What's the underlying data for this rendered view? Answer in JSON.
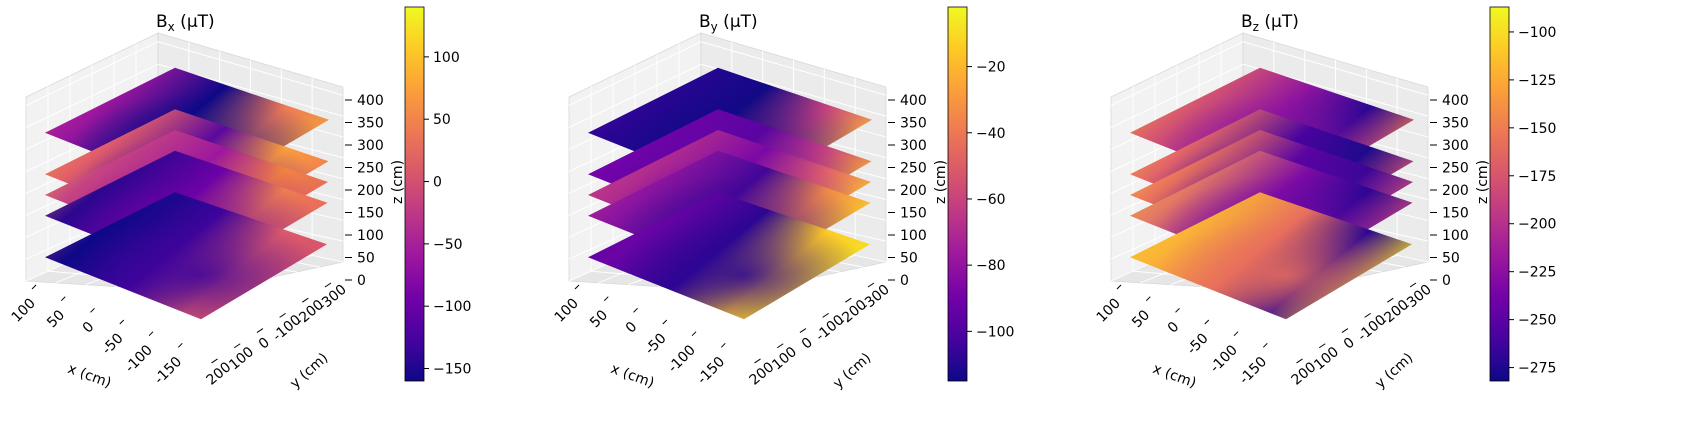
{
  "figure": {
    "panels": [
      {
        "title_main": "B",
        "title_sub": "x",
        "title_unit": " (μT)",
        "xlabel": "x (cm)",
        "ylabel": "y (cm)",
        "zlabel": "z (cm)",
        "x_ticks": [
          "100",
          "50",
          "0",
          "-50",
          "-100",
          "-150"
        ],
        "y_ticks": [
          "-300",
          "-200",
          "-100",
          "0",
          "100",
          "200"
        ],
        "z_ticks": [
          "0",
          "50",
          "100",
          "150",
          "200",
          "250",
          "300",
          "350",
          "400"
        ],
        "colorbar_ticks": [
          "100",
          "50",
          "0",
          "−50",
          "−100",
          "−150"
        ]
      },
      {
        "title_main": "B",
        "title_sub": "y",
        "title_unit": " (μT)",
        "xlabel": "x (cm)",
        "ylabel": "y (cm)",
        "zlabel": "z (cm)",
        "x_ticks": [
          "100",
          "50",
          "0",
          "-50",
          "-100",
          "-150"
        ],
        "y_ticks": [
          "-300",
          "-200",
          "-100",
          "0",
          "100",
          "200"
        ],
        "z_ticks": [
          "0",
          "50",
          "100",
          "150",
          "200",
          "250",
          "300",
          "350",
          "400"
        ],
        "colorbar_ticks": [
          "−20",
          "−40",
          "−60",
          "−80",
          "−100"
        ]
      },
      {
        "title_main": "B",
        "title_sub": "z",
        "title_unit": " (μT)",
        "xlabel": "x (cm)",
        "ylabel": "y (cm)",
        "zlabel": "z (cm)",
        "x_ticks": [
          "100",
          "50",
          "0",
          "-50",
          "-100",
          "-150"
        ],
        "y_ticks": [
          "-300",
          "-200",
          "-100",
          "0",
          "100",
          "200"
        ],
        "z_ticks": [
          "0",
          "50",
          "100",
          "150",
          "200",
          "250",
          "300",
          "350",
          "400"
        ],
        "colorbar_ticks": [
          "−100",
          "−125",
          "−150",
          "−175",
          "−200",
          "−225",
          "−250",
          "−275"
        ]
      }
    ]
  },
  "chart_data": [
    {
      "type": "heatmap",
      "colormap": "plasma",
      "title": "Bx (μT)",
      "xlabel": "x (cm)",
      "ylabel": "y (cm)",
      "zlabel": "z (cm)",
      "x_ticks": [
        100,
        50,
        0,
        -50,
        -100,
        -150
      ],
      "y_ticks": [
        -300,
        -200,
        -100,
        0,
        100,
        200
      ],
      "z_ticks": [
        0,
        50,
        100,
        150,
        200,
        250,
        300,
        350,
        400
      ],
      "zlim": [
        0,
        400
      ],
      "slice_z": [
        50,
        150,
        200,
        250,
        350
      ],
      "colorbar_range": [
        -160,
        140
      ],
      "colorbar_ticks": [
        100,
        50,
        0,
        -50,
        -100,
        -150
      ],
      "grid": true
    },
    {
      "type": "heatmap",
      "colormap": "plasma",
      "title": "By (μT)",
      "xlabel": "x (cm)",
      "ylabel": "y (cm)",
      "zlabel": "z (cm)",
      "x_ticks": [
        100,
        50,
        0,
        -50,
        -100,
        -150
      ],
      "y_ticks": [
        -300,
        -200,
        -100,
        0,
        100,
        200
      ],
      "z_ticks": [
        0,
        50,
        100,
        150,
        200,
        250,
        300,
        350,
        400
      ],
      "zlim": [
        0,
        400
      ],
      "slice_z": [
        50,
        150,
        200,
        250,
        350
      ],
      "colorbar_range": [
        -115,
        -2
      ],
      "colorbar_ticks": [
        -20,
        -40,
        -60,
        -80,
        -100
      ],
      "grid": true
    },
    {
      "type": "heatmap",
      "colormap": "plasma",
      "title": "Bz (μT)",
      "xlabel": "x (cm)",
      "ylabel": "y (cm)",
      "zlabel": "z (cm)",
      "x_ticks": [
        100,
        50,
        0,
        -50,
        -100,
        -150
      ],
      "y_ticks": [
        -300,
        -200,
        -100,
        0,
        100,
        200
      ],
      "z_ticks": [
        0,
        50,
        100,
        150,
        200,
        250,
        300,
        350,
        400
      ],
      "zlim": [
        0,
        400
      ],
      "slice_z": [
        50,
        150,
        200,
        250,
        350
      ],
      "colorbar_range": [
        -282,
        -87
      ],
      "colorbar_ticks": [
        -100,
        -125,
        -150,
        -175,
        -200,
        -225,
        -250,
        -275
      ],
      "grid": true
    }
  ]
}
